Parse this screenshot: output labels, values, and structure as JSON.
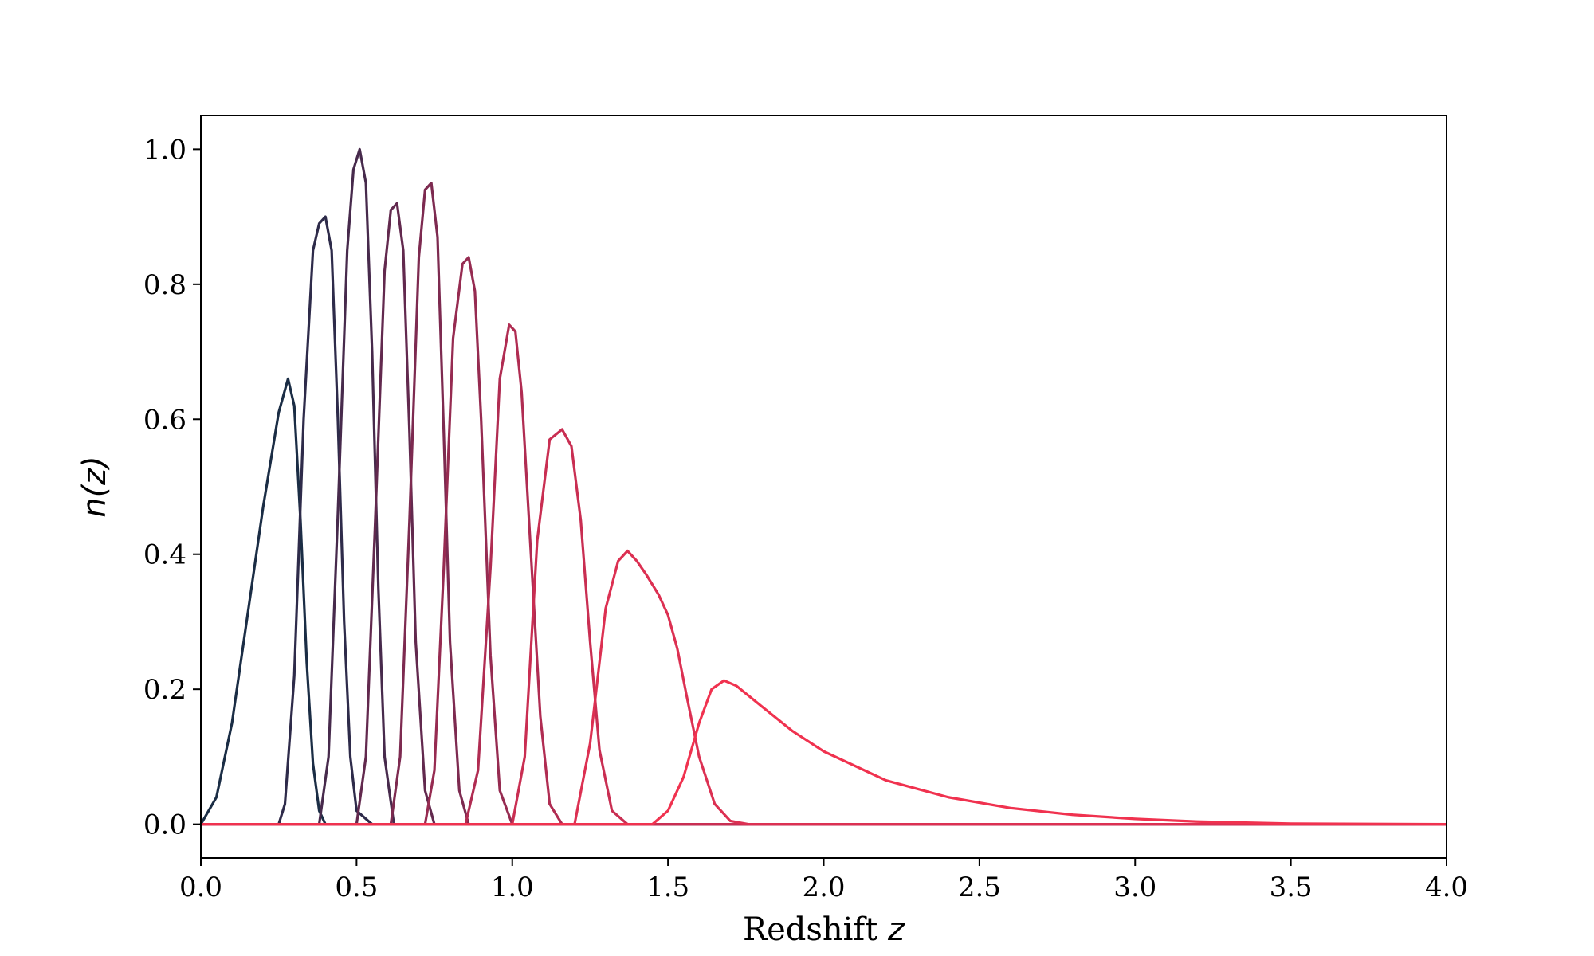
{
  "chart_data": {
    "type": "line",
    "xlabel": "Redshift",
    "xlabel_var": "z",
    "ylabel": "n(z)",
    "xlim": [
      0.0,
      4.0
    ],
    "ylim": [
      -0.05,
      1.05
    ],
    "xticks": [
      "0.0",
      "0.5",
      "1.0",
      "1.5",
      "2.0",
      "2.5",
      "3.0",
      "3.5",
      "4.0"
    ],
    "yticks": [
      "0.0",
      "0.2",
      "0.4",
      "0.6",
      "0.8",
      "1.0"
    ],
    "grid": false,
    "series": [
      {
        "color": "#1b2d45",
        "x": [
          0.0,
          0.05,
          0.1,
          0.15,
          0.2,
          0.25,
          0.28,
          0.3,
          0.32,
          0.34,
          0.36,
          0.38,
          0.4,
          0.45,
          4.0
        ],
        "y": [
          0.0,
          0.04,
          0.15,
          0.31,
          0.47,
          0.61,
          0.66,
          0.62,
          0.45,
          0.24,
          0.09,
          0.02,
          0.0,
          0.0,
          0.0
        ]
      },
      {
        "color": "#2e2b4a",
        "x": [
          0.0,
          0.25,
          0.27,
          0.3,
          0.33,
          0.36,
          0.38,
          0.4,
          0.42,
          0.44,
          0.46,
          0.48,
          0.5,
          0.55,
          4.0
        ],
        "y": [
          0.0,
          0.0,
          0.03,
          0.22,
          0.6,
          0.85,
          0.89,
          0.9,
          0.85,
          0.6,
          0.3,
          0.1,
          0.02,
          0.0,
          0.0
        ]
      },
      {
        "color": "#472a4c",
        "x": [
          0.0,
          0.38,
          0.41,
          0.44,
          0.47,
          0.49,
          0.51,
          0.53,
          0.55,
          0.57,
          0.59,
          0.62,
          4.0
        ],
        "y": [
          0.0,
          0.0,
          0.1,
          0.46,
          0.85,
          0.97,
          1.0,
          0.95,
          0.7,
          0.35,
          0.1,
          0.0,
          0.0
        ]
      },
      {
        "color": "#62294e",
        "x": [
          0.0,
          0.5,
          0.53,
          0.56,
          0.59,
          0.61,
          0.63,
          0.65,
          0.67,
          0.69,
          0.72,
          0.75,
          4.0
        ],
        "y": [
          0.0,
          0.0,
          0.1,
          0.45,
          0.82,
          0.91,
          0.92,
          0.85,
          0.58,
          0.27,
          0.05,
          0.0,
          0.0
        ]
      },
      {
        "color": "#7d2a50",
        "x": [
          0.0,
          0.61,
          0.64,
          0.67,
          0.7,
          0.72,
          0.74,
          0.76,
          0.78,
          0.8,
          0.83,
          0.86,
          4.0
        ],
        "y": [
          0.0,
          0.0,
          0.1,
          0.45,
          0.84,
          0.94,
          0.95,
          0.87,
          0.58,
          0.27,
          0.05,
          0.0,
          0.0
        ]
      },
      {
        "color": "#962b51",
        "x": [
          0.0,
          0.72,
          0.75,
          0.78,
          0.81,
          0.84,
          0.86,
          0.88,
          0.9,
          0.93,
          0.96,
          1.0,
          4.0
        ],
        "y": [
          0.0,
          0.0,
          0.08,
          0.38,
          0.72,
          0.83,
          0.84,
          0.79,
          0.6,
          0.25,
          0.05,
          0.0,
          0.0
        ]
      },
      {
        "color": "#b02c52",
        "x": [
          0.0,
          0.85,
          0.89,
          0.93,
          0.96,
          0.99,
          1.01,
          1.03,
          1.06,
          1.09,
          1.12,
          1.16,
          4.0
        ],
        "y": [
          0.0,
          0.0,
          0.08,
          0.38,
          0.66,
          0.74,
          0.73,
          0.64,
          0.4,
          0.16,
          0.03,
          0.0,
          0.0
        ]
      },
      {
        "color": "#c92e52",
        "x": [
          0.0,
          1.0,
          1.04,
          1.08,
          1.12,
          1.16,
          1.19,
          1.22,
          1.25,
          1.28,
          1.32,
          1.37,
          4.0
        ],
        "y": [
          0.0,
          0.0,
          0.1,
          0.42,
          0.57,
          0.585,
          0.56,
          0.45,
          0.27,
          0.11,
          0.02,
          0.0,
          0.0
        ]
      },
      {
        "color": "#dc3052",
        "x": [
          0.0,
          1.2,
          1.25,
          1.3,
          1.34,
          1.37,
          1.4,
          1.43,
          1.47,
          1.5,
          1.53,
          1.56,
          1.6,
          1.65,
          1.7,
          1.76,
          4.0
        ],
        "y": [
          0.0,
          0.0,
          0.12,
          0.32,
          0.39,
          0.405,
          0.39,
          0.37,
          0.34,
          0.31,
          0.26,
          0.19,
          0.1,
          0.03,
          0.005,
          0.0,
          0.0
        ]
      },
      {
        "color": "#f0324f",
        "x": [
          0.0,
          1.45,
          1.5,
          1.55,
          1.6,
          1.64,
          1.68,
          1.72,
          1.8,
          1.9,
          2.0,
          2.2,
          2.4,
          2.6,
          2.8,
          3.0,
          3.2,
          3.5,
          4.0
        ],
        "y": [
          0.0,
          0.0,
          0.02,
          0.07,
          0.15,
          0.2,
          0.213,
          0.205,
          0.175,
          0.138,
          0.108,
          0.065,
          0.04,
          0.024,
          0.014,
          0.008,
          0.004,
          0.001,
          0.0
        ]
      }
    ]
  }
}
